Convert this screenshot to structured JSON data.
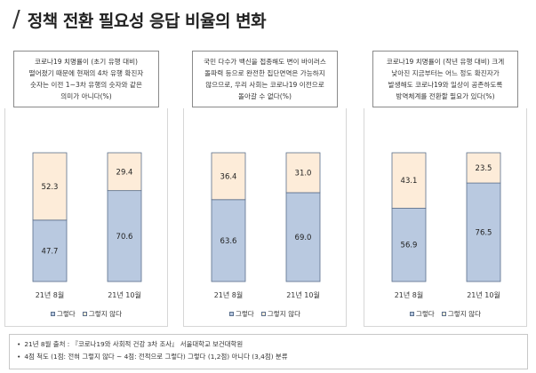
{
  "title": "정책 전환 필요성 응답 비율의 변화",
  "colors": {
    "agree": "#b9c9e0",
    "disagree": "#fdecd9",
    "border": "#5a6f8c"
  },
  "legend": {
    "agree_label": "그렇다",
    "disagree_label": "그렇지 않다"
  },
  "chart_data": [
    {
      "type": "bar",
      "stacked": true,
      "title": "코로나19 치명률이 (초기 유행 대비)\n떨어졌기 때문에 현재의 4차 유행 확진자\n숫자는 이전 1~3차 유행의 숫자와 같은\n의미가 아니다(%)",
      "categories": [
        "21년 8월",
        "21년 10월"
      ],
      "series": [
        {
          "name": "그렇다",
          "values": [
            47.7,
            70.6
          ]
        },
        {
          "name": "그렇지 않다",
          "values": [
            52.3,
            29.4
          ]
        }
      ],
      "ylim": [
        0,
        100
      ],
      "legend_position": "bottom"
    },
    {
      "type": "bar",
      "stacked": true,
      "title": "국민 다수가 백신을 접종해도 변이 바이러스\n돌파력 등으로 완전한 집단면역은 가능하지\n않으므로, 우리 사회는 코로나19 이전으로\n돌아갈 수 없다(%)",
      "categories": [
        "21년 8월",
        "21년 10월"
      ],
      "series": [
        {
          "name": "그렇다",
          "values": [
            63.6,
            69.0
          ]
        },
        {
          "name": "그렇지 않다",
          "values": [
            36.4,
            31.0
          ]
        }
      ],
      "ylim": [
        0,
        100
      ],
      "legend_position": "bottom"
    },
    {
      "type": "bar",
      "stacked": true,
      "title": "코로나19 치명률이 (작년 유행 대비) 크게\n낮아진 지금부터는 어느 정도 확진자가\n발생해도 코로나19와 일상이 공존하도록\n방역체계를 전환할 필요가 있다(%)",
      "categories": [
        "21년 8월",
        "21년 10월"
      ],
      "series": [
        {
          "name": "그렇다",
          "values": [
            56.9,
            76.5
          ]
        },
        {
          "name": "그렇지 않다",
          "values": [
            43.1,
            23.5
          ]
        }
      ],
      "ylim": [
        0,
        100
      ],
      "legend_position": "bottom"
    }
  ],
  "footnotes": [
    "21년 8월 출처 : 『코로나19와 사회적 건강 3차 조사』 서울대학교 보건대학원",
    "4점 척도 (1점: 전혀 그렇지 않다 ~ 4점: 전적으로 그렇다) 그렇다 (1,2점) 아니다 (3,4점) 분류"
  ]
}
